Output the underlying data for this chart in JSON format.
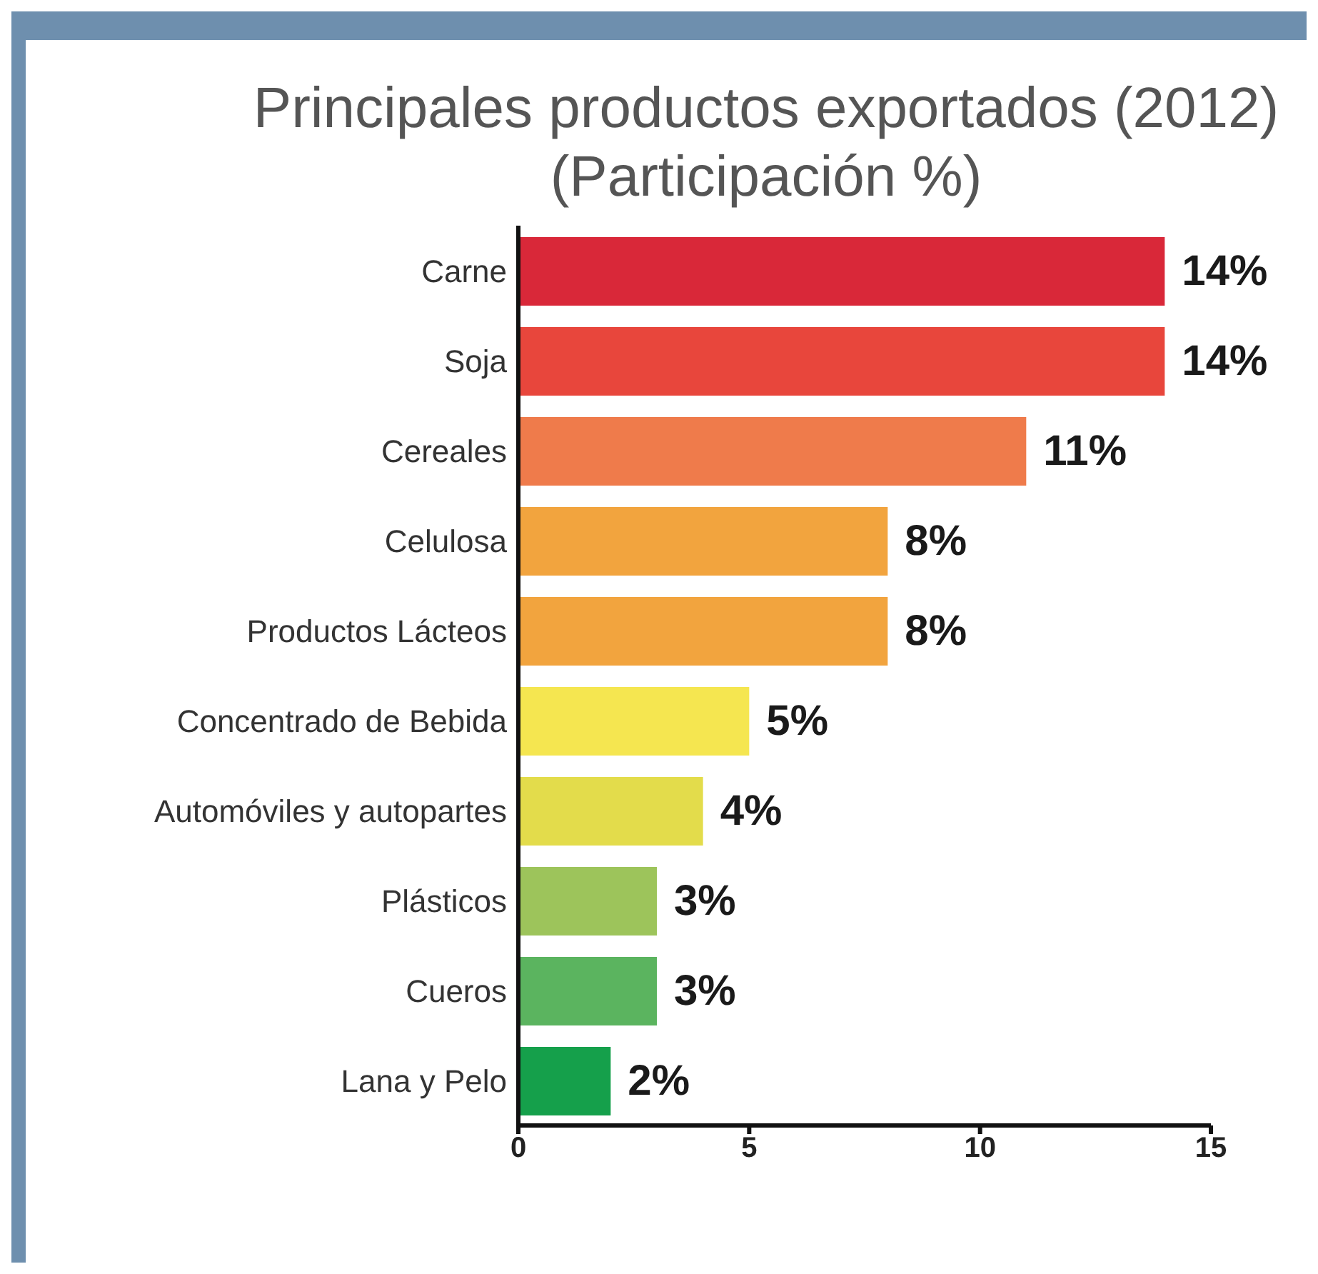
{
  "chart_data": {
    "type": "bar",
    "orientation": "horizontal",
    "title": "Principales productos exportados (2012)",
    "subtitle": "(Participación %)",
    "categories": [
      "Carne",
      "Soja",
      "Cereales",
      "Celulosa",
      "Productos Lácteos",
      "Concentrado de Bebida",
      "Automóviles y autopartes",
      "Plásticos",
      "Cueros",
      "Lana y Pelo"
    ],
    "values": [
      14,
      14,
      11,
      8,
      8,
      5,
      4,
      3,
      3,
      2
    ],
    "value_labels": [
      "14%",
      "14%",
      "11%",
      "8%",
      "8%",
      "5%",
      "4%",
      "3%",
      "3%",
      "2%"
    ],
    "colors": [
      "#d92839",
      "#e8463c",
      "#ef7b4b",
      "#f2a43e",
      "#f2a43e",
      "#f5e650",
      "#e3dc4b",
      "#9dc45b",
      "#5bb45f",
      "#15a04b"
    ],
    "xlim": [
      0,
      15
    ],
    "xticks": [
      0,
      5,
      10,
      15
    ],
    "grid": false,
    "legend": false
  }
}
